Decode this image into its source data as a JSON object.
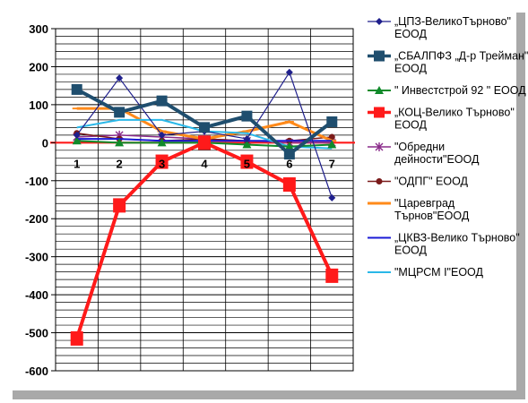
{
  "chart_data": {
    "type": "line",
    "categories": [
      "1",
      "2",
      "3",
      "4",
      "5",
      "6",
      "7"
    ],
    "yticks": [
      "300",
      "200",
      "100",
      "0",
      "-100",
      "-200",
      "-300",
      "-400",
      "-500",
      "-600"
    ],
    "ylim": [
      -600,
      300
    ],
    "grid": true,
    "legend_position": "right",
    "series": [
      {
        "name": "„ЦПЗ-ВеликоТърново\" ЕООД",
        "legend_lines": [
          "„ЦПЗ-ВеликоТърново\"",
          "ЕООД"
        ],
        "color": "#1f1f8c",
        "marker": "diamond",
        "width": 1.2,
        "values": [
          20,
          170,
          20,
          30,
          10,
          185,
          -145
        ]
      },
      {
        "name": "„СБАЛПФЗ „Д-р Трейман\" ЕООД",
        "legend_lines": [
          "„СБАЛПФЗ „Д-р Трейман\"",
          "ЕООД"
        ],
        "color": "#1f4e6e",
        "marker": "square",
        "width": 4,
        "values": [
          140,
          80,
          110,
          40,
          70,
          -30,
          55
        ]
      },
      {
        "name": "\" Инвестстрой 92 \" ЕООД",
        "legend_lines": [
          "\" Инвестстрой 92 \" ЕООД"
        ],
        "color": "#108a2a",
        "marker": "triangle",
        "width": 2,
        "values": [
          5,
          0,
          0,
          0,
          -5,
          -10,
          -5
        ]
      },
      {
        "name": "„КОЦ-Велико Търново\" ЕООД",
        "legend_lines": [
          "„КОЦ-Велико Търново\"",
          "ЕООД"
        ],
        "color": "#ff1a1a",
        "marker": "bigsquare",
        "width": 4,
        "values": [
          -515,
          -165,
          -50,
          0,
          -50,
          -110,
          -350
        ]
      },
      {
        "name": "\"Обредни дейности\"ЕООД",
        "legend_lines": [
          "           \"Обредни",
          "дейности\"ЕООД"
        ],
        "color": "#8a2b8a",
        "marker": "star",
        "width": 1.5,
        "values": [
          15,
          20,
          15,
          10,
          5,
          0,
          0
        ]
      },
      {
        "name": "\"ОДПГ\" ЕООД",
        "legend_lines": [
          "\"ОДПГ\" ЕООД"
        ],
        "color": "#7a1a1a",
        "marker": "circle",
        "width": 1.5,
        "values": [
          25,
          10,
          5,
          10,
          5,
          5,
          15
        ]
      },
      {
        "name": "\"Царевград Търнов\"ЕООД",
        "legend_lines": [
          "\"Царевград",
          "Търнов\"ЕООД"
        ],
        "color": "#ff8a1a",
        "marker": "dash",
        "width": 3,
        "values": [
          90,
          90,
          30,
          10,
          30,
          55,
          5
        ]
      },
      {
        "name": "„ЦКВЗ-Велико Търново\" ЕООД",
        "legend_lines": [
          "„ЦКВЗ-Велико Търново\"",
          "ЕООД"
        ],
        "color": "#1a1ad6",
        "marker": "none",
        "width": 2,
        "values": [
          10,
          10,
          5,
          5,
          5,
          5,
          5
        ]
      },
      {
        "name": "\"МЦРСМ I\"ЕООД",
        "legend_lines": [
          "\"МЦРСМ I\"ЕООД"
        ],
        "color": "#2ab8e8",
        "marker": "none",
        "width": 2,
        "values": [
          40,
          60,
          60,
          30,
          25,
          -10,
          -15
        ]
      }
    ]
  }
}
